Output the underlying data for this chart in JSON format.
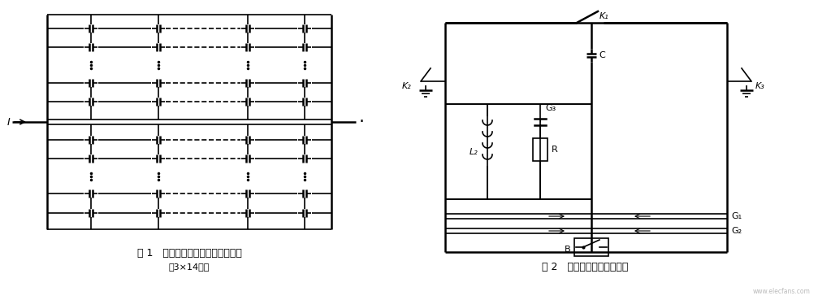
{
  "bg_color": "#ffffff",
  "fig_width": 10.07,
  "fig_height": 3.69,
  "caption1": "图 1   典型单元电容器组内部接线图",
  "caption1_sub": "（3×14节）",
  "caption2": "图 2   典型单元的保护回路图",
  "watermark": "www.elecfans.com",
  "label_K1": "K₁",
  "label_K2": "K₂",
  "label_K3": "K₃",
  "label_C": "C",
  "label_G3": "G₃",
  "label_G1": "G₁",
  "label_G2": "G₂",
  "label_L2": "L₂",
  "label_R": "R",
  "label_B": "B",
  "label_I": "I"
}
